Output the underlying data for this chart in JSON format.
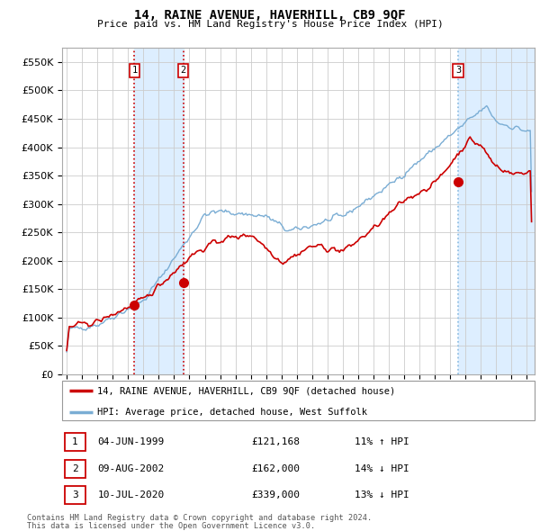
{
  "title": "14, RAINE AVENUE, HAVERHILL, CB9 9QF",
  "subtitle": "Price paid vs. HM Land Registry's House Price Index (HPI)",
  "legend_line1": "14, RAINE AVENUE, HAVERHILL, CB9 9QF (detached house)",
  "legend_line2": "HPI: Average price, detached house, West Suffolk",
  "table_rows": [
    {
      "num": "1",
      "date": "04-JUN-1999",
      "price": "£121,168",
      "hpi": "11% ↑ HPI"
    },
    {
      "num": "2",
      "date": "09-AUG-2002",
      "price": "£162,000",
      "hpi": "14% ↓ HPI"
    },
    {
      "num": "3",
      "date": "10-JUL-2020",
      "price": "£339,000",
      "hpi": "13% ↓ HPI"
    }
  ],
  "footnote1": "Contains HM Land Registry data © Crown copyright and database right 2024.",
  "footnote2": "This data is licensed under the Open Government Licence v3.0.",
  "sale1_year": 1999.42,
  "sale2_year": 2002.6,
  "sale3_year": 2020.52,
  "sale1_price": 121168,
  "sale2_price": 162000,
  "sale3_price": 339000,
  "ylim": [
    0,
    575000
  ],
  "xlim_start": 1994.7,
  "xlim_end": 2025.5,
  "red_color": "#cc0000",
  "blue_color": "#7aadd4",
  "shade_color": "#ddeeff",
  "grid_color": "#cccccc",
  "background_color": "#ffffff"
}
